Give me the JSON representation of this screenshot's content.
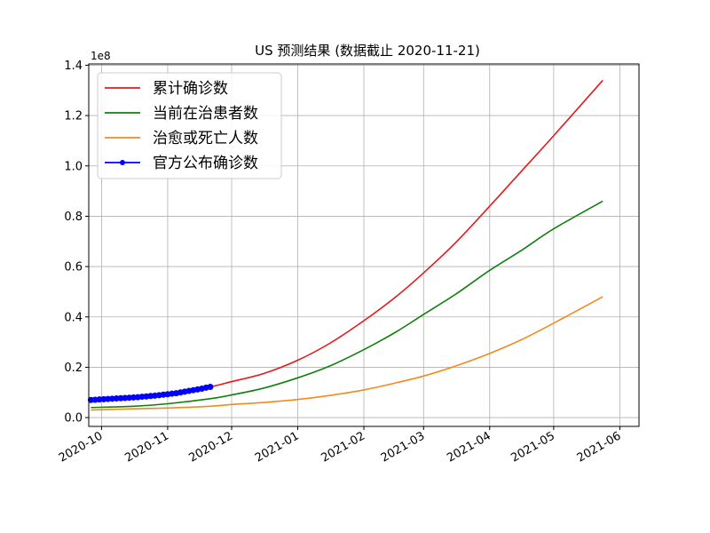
{
  "chart_data": {
    "type": "line",
    "title": "US 预测结果 (数据截止 2020-11-21)",
    "xlabel": "",
    "ylabel": "",
    "y_offset_label": "1e8",
    "xlim": [
      "2020-09-25",
      "2021-06-10"
    ],
    "ylim": [
      -0.035,
      1.405
    ],
    "x_ticks": [
      "2020-10-01",
      "2020-11-01",
      "2020-12-01",
      "2021-01-01",
      "2021-02-01",
      "2021-03-01",
      "2021-04-01",
      "2021-05-01",
      "2021-06-01"
    ],
    "x_tick_labels": [
      "2020-10",
      "2020-11",
      "2020-12",
      "2021-01",
      "2021-02",
      "2021-03",
      "2021-04",
      "2021-05",
      "2021-06"
    ],
    "y_ticks": [
      0.0,
      0.2,
      0.4,
      0.6,
      0.8,
      1.0,
      1.2,
      1.4
    ],
    "y_tick_labels": [
      "0.0",
      "0.2",
      "0.4",
      "0.6",
      "0.8",
      "1.0",
      "1.2",
      "1.4"
    ],
    "grid": true,
    "legend_position": "top-left",
    "series": [
      {
        "name": "累计确诊数",
        "color": "#e31a1c",
        "points": [
          [
            "2020-09-26",
            0.07
          ],
          [
            "2020-10-16",
            0.08
          ],
          [
            "2020-11-01",
            0.09
          ],
          [
            "2020-11-21",
            0.122
          ],
          [
            "2020-12-01",
            0.143
          ],
          [
            "2020-12-16",
            0.175
          ],
          [
            "2021-01-01",
            0.228
          ],
          [
            "2021-01-16",
            0.295
          ],
          [
            "2021-02-01",
            0.385
          ],
          [
            "2021-02-16",
            0.48
          ],
          [
            "2021-03-01",
            0.575
          ],
          [
            "2021-03-16",
            0.695
          ],
          [
            "2021-04-01",
            0.84
          ],
          [
            "2021-04-16",
            0.98
          ],
          [
            "2021-05-01",
            1.12
          ],
          [
            "2021-05-24",
            1.34
          ]
        ]
      },
      {
        "name": "当前在治患者数",
        "color": "#107f10",
        "points": [
          [
            "2020-09-26",
            0.04
          ],
          [
            "2020-10-16",
            0.045
          ],
          [
            "2020-11-01",
            0.055
          ],
          [
            "2020-11-21",
            0.075
          ],
          [
            "2020-12-01",
            0.09
          ],
          [
            "2020-12-16",
            0.117
          ],
          [
            "2021-01-01",
            0.158
          ],
          [
            "2021-01-16",
            0.205
          ],
          [
            "2021-02-01",
            0.27
          ],
          [
            "2021-02-16",
            0.34
          ],
          [
            "2021-03-01",
            0.41
          ],
          [
            "2021-03-16",
            0.49
          ],
          [
            "2021-04-01",
            0.585
          ],
          [
            "2021-04-16",
            0.665
          ],
          [
            "2021-05-01",
            0.75
          ],
          [
            "2021-05-24",
            0.86
          ]
        ]
      },
      {
        "name": "治愈或死亡人数",
        "color": "#f28a1e",
        "points": [
          [
            "2020-09-26",
            0.03
          ],
          [
            "2020-10-16",
            0.035
          ],
          [
            "2020-11-01",
            0.038
          ],
          [
            "2020-11-21",
            0.045
          ],
          [
            "2020-12-01",
            0.052
          ],
          [
            "2020-12-16",
            0.06
          ],
          [
            "2021-01-01",
            0.072
          ],
          [
            "2021-01-16",
            0.088
          ],
          [
            "2021-02-01",
            0.11
          ],
          [
            "2021-02-16",
            0.138
          ],
          [
            "2021-03-01",
            0.165
          ],
          [
            "2021-03-16",
            0.205
          ],
          [
            "2021-04-01",
            0.255
          ],
          [
            "2021-04-16",
            0.31
          ],
          [
            "2021-05-01",
            0.375
          ],
          [
            "2021-05-24",
            0.48
          ]
        ]
      },
      {
        "name": "官方公布确诊数",
        "color": "#0000ff",
        "marker": "circle",
        "points": [
          [
            "2020-09-26",
            0.07
          ],
          [
            "2020-09-28",
            0.071
          ],
          [
            "2020-09-30",
            0.072
          ],
          [
            "2020-10-02",
            0.073
          ],
          [
            "2020-10-04",
            0.074
          ],
          [
            "2020-10-06",
            0.075
          ],
          [
            "2020-10-08",
            0.076
          ],
          [
            "2020-10-10",
            0.077
          ],
          [
            "2020-10-12",
            0.078
          ],
          [
            "2020-10-14",
            0.079
          ],
          [
            "2020-10-16",
            0.08
          ],
          [
            "2020-10-18",
            0.081
          ],
          [
            "2020-10-20",
            0.083
          ],
          [
            "2020-10-22",
            0.084
          ],
          [
            "2020-10-24",
            0.086
          ],
          [
            "2020-10-26",
            0.087
          ],
          [
            "2020-10-28",
            0.089
          ],
          [
            "2020-10-30",
            0.091
          ],
          [
            "2020-11-01",
            0.093
          ],
          [
            "2020-11-03",
            0.095
          ],
          [
            "2020-11-05",
            0.097
          ],
          [
            "2020-11-07",
            0.1
          ],
          [
            "2020-11-09",
            0.103
          ],
          [
            "2020-11-11",
            0.106
          ],
          [
            "2020-11-13",
            0.109
          ],
          [
            "2020-11-15",
            0.112
          ],
          [
            "2020-11-17",
            0.115
          ],
          [
            "2020-11-19",
            0.119
          ],
          [
            "2020-11-21",
            0.122
          ]
        ]
      }
    ]
  }
}
